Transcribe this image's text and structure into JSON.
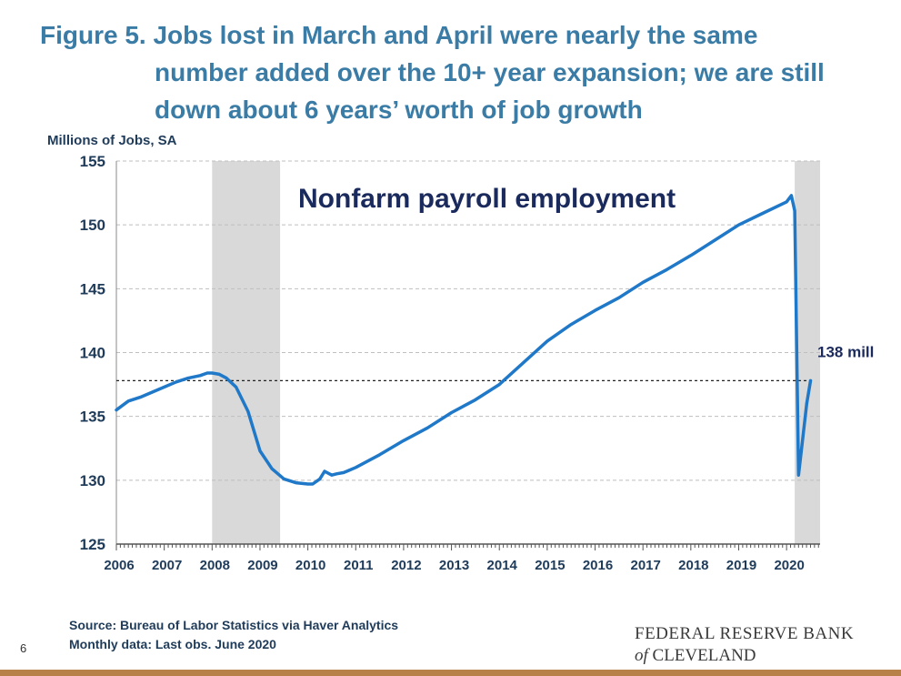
{
  "title_lines": [
    "Figure 5. Jobs lost in March and April were nearly the same",
    "number added over the 10+ year expansion; we are still",
    "down about 6 years’ worth of job growth"
  ],
  "footer": {
    "source": "Source: Bureau of Labor Statistics via Haver Analytics",
    "note": "Monthly data: Last obs. June 2020",
    "page_number": "6",
    "logo_line1": "FEDERAL RESERVE BANK",
    "logo_of": "of",
    "logo_city": "CLEVELAND"
  },
  "chart_data": {
    "type": "line",
    "title": "Nonfarm payroll employment",
    "ylabel": "Millions of Jobs, SA",
    "xlabel": "",
    "ylim": [
      125,
      155
    ],
    "xlim": [
      2006.0,
      2020.7
    ],
    "yticks": [
      125,
      130,
      135,
      140,
      145,
      150,
      155
    ],
    "xticks": [
      "2006",
      "2007",
      "2008",
      "2009",
      "2010",
      "2011",
      "2012",
      "2013",
      "2014",
      "2015",
      "2016",
      "2017",
      "2018",
      "2019",
      "2020"
    ],
    "grid": "horizontal-dashed",
    "legend": "none",
    "line_color": "#1f78c8",
    "recession_color": "#d9d9d9",
    "recessions": [
      [
        2008.0,
        2009.42
      ],
      [
        2020.17,
        2020.7
      ]
    ],
    "reference_line": {
      "value": 137.8,
      "label": "138 mill"
    },
    "series": [
      {
        "x": [
          2006.0,
          2006.25,
          2006.5,
          2006.75,
          2007.0,
          2007.25,
          2007.5,
          2007.75,
          2007.9,
          2008.0,
          2008.15,
          2008.3,
          2008.5,
          2008.75,
          2009.0,
          2009.25,
          2009.5,
          2009.75,
          2010.0,
          2010.1,
          2010.25,
          2010.35,
          2010.5,
          2010.6,
          2010.75,
          2011.0,
          2011.5,
          2012.0,
          2012.5,
          2013.0,
          2013.5,
          2014.0,
          2014.5,
          2015.0,
          2015.5,
          2016.0,
          2016.5,
          2017.0,
          2017.5,
          2018.0,
          2018.5,
          2019.0,
          2019.5,
          2020.0,
          2020.1,
          2020.17,
          2020.25,
          2020.33,
          2020.42,
          2020.5
        ],
        "y": [
          135.5,
          136.2,
          136.5,
          136.9,
          137.3,
          137.7,
          138.0,
          138.2,
          138.4,
          138.4,
          138.3,
          138.0,
          137.3,
          135.4,
          132.3,
          130.9,
          130.1,
          129.8,
          129.7,
          129.7,
          130.1,
          130.7,
          130.4,
          130.5,
          130.6,
          131.0,
          132.0,
          133.1,
          134.1,
          135.3,
          136.3,
          137.5,
          139.2,
          140.9,
          142.2,
          143.3,
          144.3,
          145.5,
          146.5,
          147.6,
          148.8,
          150.0,
          150.9,
          151.8,
          152.3,
          151.1,
          130.4,
          133.0,
          136.0,
          137.8
        ]
      }
    ]
  }
}
